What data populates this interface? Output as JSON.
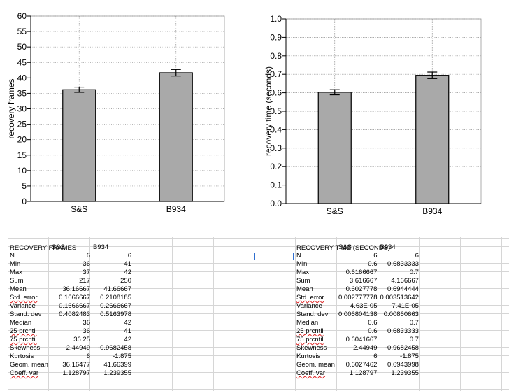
{
  "chart_data": [
    {
      "type": "bar",
      "categories": [
        "S&S",
        "B934"
      ],
      "values": [
        36.16667,
        41.66667
      ],
      "errors": [
        0.8333,
        1.0541
      ],
      "ylabel": "recovery frames",
      "ylim": [
        0,
        60
      ],
      "yticks": [
        0,
        5,
        10,
        15,
        20,
        25,
        30,
        35,
        40,
        45,
        50,
        55,
        60
      ],
      "ytick_labels": [
        "0",
        "5",
        "10",
        "15",
        "20",
        "25",
        "30",
        "35",
        "40",
        "45",
        "50",
        "55",
        "60"
      ],
      "grid": true,
      "bar_color": "#a9a9a9"
    },
    {
      "type": "bar",
      "categories": [
        "S&S",
        "B934"
      ],
      "values": [
        0.6027778,
        0.6944444
      ],
      "errors": [
        0.0139,
        0.0176
      ],
      "ylabel": "recovery time (seconds)",
      "ylim": [
        0,
        1.0
      ],
      "yticks": [
        0,
        0.1,
        0.2,
        0.3,
        0.4,
        0.5,
        0.6,
        0.7,
        0.8,
        0.9,
        1.0
      ],
      "ytick_labels": [
        "0.0",
        "0.1",
        "0.2",
        "0.3",
        "0.4",
        "0.5",
        "0.6",
        "0.7",
        "0.8",
        "0.9",
        "1.0"
      ],
      "grid": true,
      "bar_color": "#a9a9a9"
    }
  ],
  "tables": {
    "left": {
      "title": "RECOVERY FRAMES",
      "columns": [
        "S&S",
        "B934"
      ],
      "rows": [
        {
          "label": "N",
          "v1": "6",
          "v2": "6"
        },
        {
          "label": "Min",
          "v1": "36",
          "v2": "41"
        },
        {
          "label": "Max",
          "v1": "37",
          "v2": "42"
        },
        {
          "label": "Sum",
          "v1": "217",
          "v2": "250"
        },
        {
          "label": "Mean",
          "v1": "36.16667",
          "v2": "41.66667"
        },
        {
          "label": "Std. error",
          "v1": "0.1666667",
          "v2": "0.2108185"
        },
        {
          "label": "Variance",
          "v1": "0.1666667",
          "v2": "0.2666667"
        },
        {
          "label": "Stand. dev",
          "v1": "0.4082483",
          "v2": "0.5163978"
        },
        {
          "label": "Median",
          "v1": "36",
          "v2": "42"
        },
        {
          "label": "25 prcntil",
          "v1": "36",
          "v2": "41"
        },
        {
          "label": "75 prcntil",
          "v1": "36.25",
          "v2": "42"
        },
        {
          "label": "Skewness",
          "v1": "2.44949",
          "v2": "-0.9682458"
        },
        {
          "label": "Kurtosis",
          "v1": "6",
          "v2": "-1.875"
        },
        {
          "label": "Geom. mean",
          "v1": "36.16477",
          "v2": "41.66399"
        },
        {
          "label": "Coeff. var",
          "v1": "1.128797",
          "v2": "1.239355"
        }
      ]
    },
    "right": {
      "title": "RECOVERY TIME (SECONDS)",
      "columns": [
        "S&S",
        "B934"
      ],
      "rows": [
        {
          "label": "N",
          "v1": "6",
          "v2": "6"
        },
        {
          "label": "Min",
          "v1": "0.6",
          "v2": "0.6833333"
        },
        {
          "label": "Max",
          "v1": "0.6166667",
          "v2": "0.7"
        },
        {
          "label": "Sum",
          "v1": "3.616667",
          "v2": "4.166667"
        },
        {
          "label": "Mean",
          "v1": "0.6027778",
          "v2": "0.6944444"
        },
        {
          "label": "Std. error",
          "v1": "0.002777778",
          "v2": "0.003513642"
        },
        {
          "label": "Variance",
          "v1": "4.63E-05",
          "v2": "7.41E-05"
        },
        {
          "label": "Stand. dev",
          "v1": "0.006804138",
          "v2": "0.00860663"
        },
        {
          "label": "Median",
          "v1": "0.6",
          "v2": "0.7"
        },
        {
          "label": "25 prcntil",
          "v1": "0.6",
          "v2": "0.6833333"
        },
        {
          "label": "75 prcntil",
          "v1": "0.6041667",
          "v2": "0.7"
        },
        {
          "label": "Skewness",
          "v1": "2.44949",
          "v2": "-0.9682458"
        },
        {
          "label": "Kurtosis",
          "v1": "6",
          "v2": "-1.875"
        },
        {
          "label": "Geom. mean",
          "v1": "0.6027462",
          "v2": "0.6943998"
        },
        {
          "label": "Coeff. var",
          "v1": "1.128797",
          "v2": "1.239355"
        }
      ]
    }
  }
}
